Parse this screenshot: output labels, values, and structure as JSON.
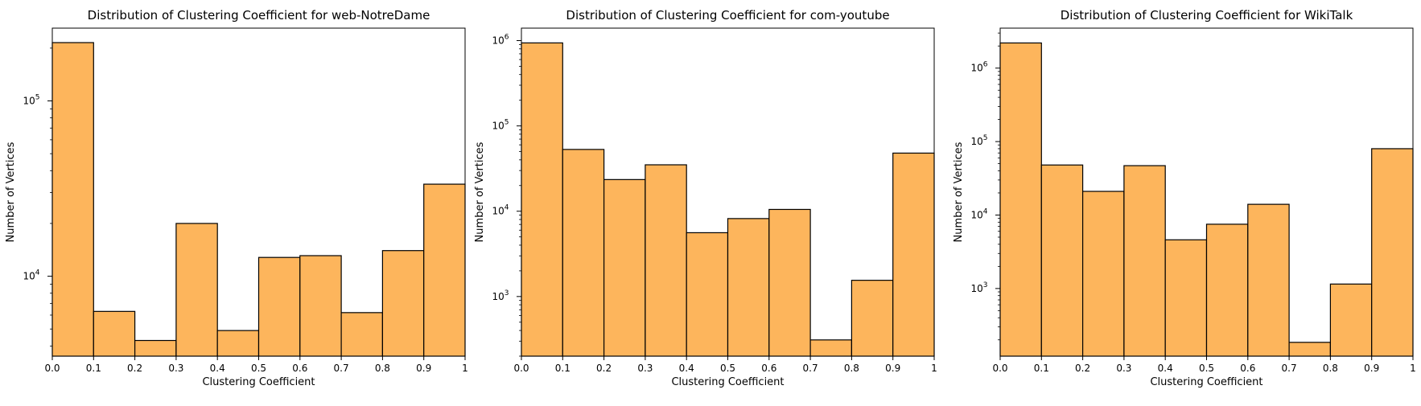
{
  "chart_data": [
    {
      "type": "bar",
      "title": "Distribution of Clustering Coefficient for web-NotreDame",
      "xlabel": "Clustering Coefficient",
      "ylabel": "Number of Vertices",
      "yscale": "log",
      "bin_edges": [
        0,
        0.1,
        0.2,
        0.3,
        0.4,
        0.5,
        0.6,
        0.7,
        0.8,
        0.9,
        1
      ],
      "xticks": [
        "0.0",
        "0.1",
        "0.2",
        "0.3",
        "0.4",
        "0.5",
        "0.6",
        "0.7",
        "0.8",
        "0.9",
        "1"
      ],
      "values": [
        215000,
        6300,
        4300,
        20000,
        4900,
        12800,
        13100,
        6200,
        14000,
        33500
      ],
      "ylim": [
        3500,
        260000
      ],
      "ytick_major": [
        {
          "base": "10",
          "exp": "4",
          "value": 10000
        },
        {
          "base": "10",
          "exp": "5",
          "value": 100000
        }
      ],
      "grid": false,
      "bar_color": "#fdb55c",
      "edge_color": "#000000"
    },
    {
      "type": "bar",
      "title": "Distribution of Clustering Coefficient for com-youtube",
      "xlabel": "Clustering Coefficient",
      "ylabel": "Number of Vertices",
      "yscale": "log",
      "bin_edges": [
        0,
        0.1,
        0.2,
        0.3,
        0.4,
        0.5,
        0.6,
        0.7,
        0.8,
        0.9,
        1
      ],
      "xticks": [
        "0.0",
        "0.1",
        "0.2",
        "0.3",
        "0.4",
        "0.5",
        "0.6",
        "0.7",
        "0.8",
        "0.9",
        "1"
      ],
      "values": [
        940000,
        53000,
        23500,
        35000,
        5600,
        8200,
        10500,
        310,
        1550,
        48000
      ],
      "ylim": [
        200,
        1400000
      ],
      "ytick_major": [
        {
          "base": "10",
          "exp": "3",
          "value": 1000
        },
        {
          "base": "10",
          "exp": "4",
          "value": 10000
        },
        {
          "base": "10",
          "exp": "5",
          "value": 100000
        },
        {
          "base": "10",
          "exp": "6",
          "value": 1000000
        }
      ],
      "grid": false,
      "bar_color": "#fdb55c",
      "edge_color": "#000000"
    },
    {
      "type": "bar",
      "title": "Distribution of Clustering Coefficient for WikiTalk",
      "xlabel": "Clustering Coefficient",
      "ylabel": "Number of Vertices",
      "yscale": "log",
      "bin_edges": [
        0,
        0.1,
        0.2,
        0.3,
        0.4,
        0.5,
        0.6,
        0.7,
        0.8,
        0.9,
        1
      ],
      "xticks": [
        "0.0",
        "0.1",
        "0.2",
        "0.3",
        "0.4",
        "0.5",
        "0.6",
        "0.7",
        "0.8",
        "0.9",
        "1"
      ],
      "values": [
        2200000,
        48000,
        21000,
        47000,
        4600,
        7500,
        14000,
        185,
        1150,
        80000
      ],
      "ylim": [
        120,
        3500000
      ],
      "ytick_major": [
        {
          "base": "10",
          "exp": "3",
          "value": 1000
        },
        {
          "base": "10",
          "exp": "4",
          "value": 10000
        },
        {
          "base": "10",
          "exp": "5",
          "value": 100000
        },
        {
          "base": "10",
          "exp": "6",
          "value": 1000000
        }
      ],
      "grid": false,
      "bar_color": "#fdb55c",
      "edge_color": "#000000"
    }
  ]
}
